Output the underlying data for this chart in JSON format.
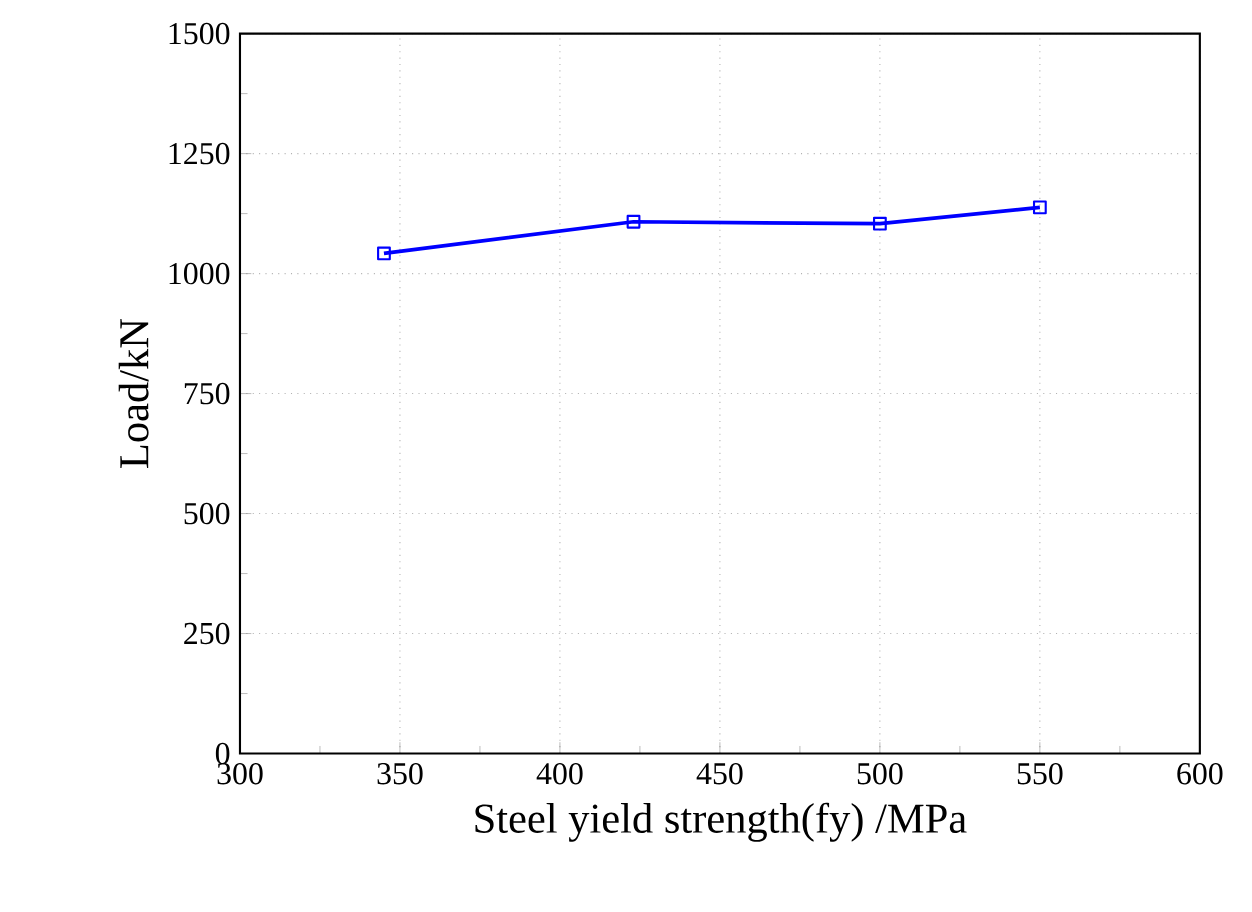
{
  "chart_data": {
    "type": "line",
    "xlabel": "Steel  yield strength(fy) /MPa",
    "ylabel": "Load/kN",
    "series": [
      {
        "color": "#0000ff",
        "x": [
          345,
          423,
          500,
          550
        ],
        "values": [
          1042,
          1108,
          1104,
          1138
        ]
      }
    ],
    "xlim": [
      300,
      600
    ],
    "xticks": [
      300,
      350,
      400,
      450,
      500,
      550,
      600
    ],
    "ylim": [
      0,
      1500
    ],
    "yticks": [
      0,
      250,
      500,
      750,
      1000,
      1250,
      1500
    ],
    "grid": true,
    "marker": "square",
    "line_style": "solid"
  }
}
